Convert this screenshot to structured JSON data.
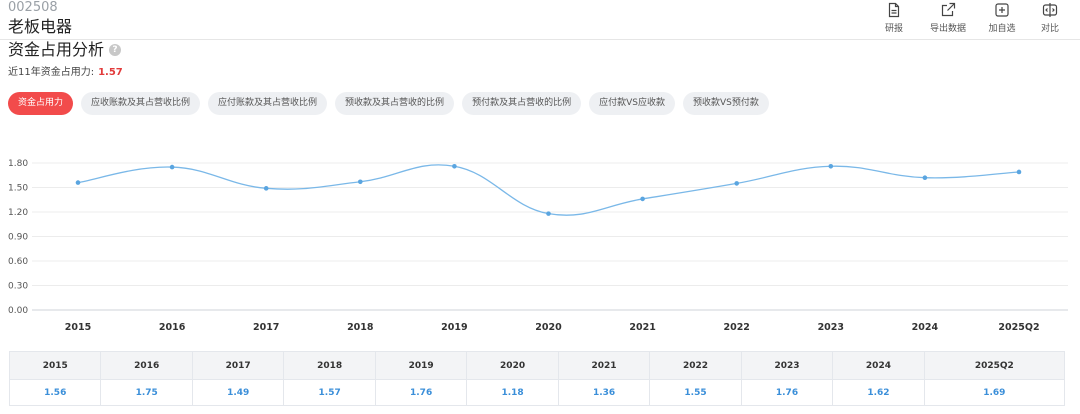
{
  "stock": {
    "code": "002508",
    "name": "老板电器"
  },
  "toolbar": [
    {
      "label": "研报",
      "icon": "document-icon"
    },
    {
      "label": "导出数据",
      "icon": "export-icon"
    },
    {
      "label": "加自选",
      "icon": "add-icon"
    },
    {
      "label": "对比",
      "icon": "compare-icon"
    }
  ],
  "section": {
    "title": "资金占用分析",
    "help_icon": "?"
  },
  "summary": {
    "label": "近11年资金占用力:",
    "value": "1.57"
  },
  "tabs": [
    {
      "label": "资金占用力",
      "active": true
    },
    {
      "label": "应收账款及其占营收比例",
      "active": false
    },
    {
      "label": "应付账款及其占营收比例",
      "active": false
    },
    {
      "label": "预收款及其占营收的比例",
      "active": false
    },
    {
      "label": "预付款及其占营收的比例",
      "active": false
    },
    {
      "label": "应付款VS应收款",
      "active": false
    },
    {
      "label": "预收款VS预付款",
      "active": false
    }
  ],
  "colors": {
    "line": "#7ab8e8",
    "point": "#5aa5e0",
    "active_tab": "#f24b4b",
    "summary_value": "#e23b3b"
  },
  "chart_data": {
    "type": "line",
    "categories": [
      "2015",
      "2016",
      "2017",
      "2018",
      "2019",
      "2020",
      "2021",
      "2022",
      "2023",
      "2024",
      "2025Q2"
    ],
    "series": [
      {
        "values": [
          1.56,
          1.75,
          1.49,
          1.57,
          1.76,
          1.18,
          1.36,
          1.55,
          1.76,
          1.62,
          1.69
        ]
      }
    ],
    "yticks": [
      "0.00",
      "0.30",
      "0.60",
      "0.90",
      "1.20",
      "1.50",
      "1.80"
    ],
    "ylim": [
      0,
      1.8
    ],
    "grid": true
  },
  "table": {
    "headers": [
      "2015",
      "2016",
      "2017",
      "2018",
      "2019",
      "2020",
      "2021",
      "2022",
      "2023",
      "2024",
      "2025Q2"
    ],
    "values": [
      "1.56",
      "1.75",
      "1.49",
      "1.57",
      "1.76",
      "1.18",
      "1.36",
      "1.55",
      "1.76",
      "1.62",
      "1.69"
    ]
  }
}
